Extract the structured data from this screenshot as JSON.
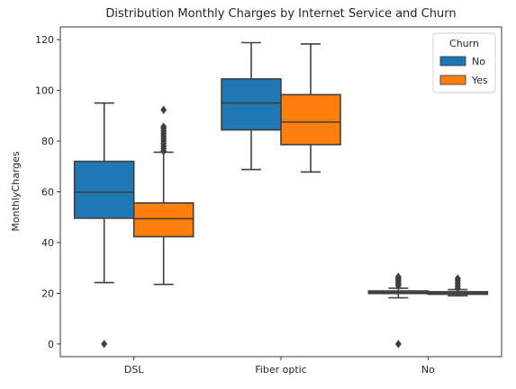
{
  "chart_data": {
    "type": "box",
    "title": "Distribution Monthly Charges by Internet Service and Churn",
    "xlabel": "",
    "ylabel": "MonthlyCharges",
    "ylim": [
      -5,
      125
    ],
    "yticks": [
      0,
      20,
      40,
      60,
      80,
      100,
      120
    ],
    "categories": [
      "DSL",
      "Fiber optic",
      "No"
    ],
    "legend": {
      "title": "Churn",
      "placement": "top-right"
    },
    "series": [
      {
        "name": "No",
        "color": "#1f77b4",
        "boxes": [
          {
            "whisker_low": 24.2,
            "q1": 49.6,
            "median": 59.9,
            "q3": 72.0,
            "whisker_high": 95.0,
            "outliers": [
              0
            ]
          },
          {
            "whisker_low": 68.8,
            "q1": 84.4,
            "median": 95.0,
            "q3": 104.5,
            "whisker_high": 118.8,
            "outliers": []
          },
          {
            "whisker_low": 18.2,
            "q1": 19.9,
            "median": 20.2,
            "q3": 20.9,
            "whisker_high": 22.0,
            "outliers": [
              0,
              23.0,
              23.6,
              24.2,
              24.8,
              25.4,
              26.0,
              26.5
            ]
          }
        ]
      },
      {
        "name": "Yes",
        "color": "#ff7f0e",
        "boxes": [
          {
            "whisker_low": 23.5,
            "q1": 42.3,
            "median": 49.4,
            "q3": 55.6,
            "whisker_high": 75.6,
            "outliers": [
              76.0,
              77.0,
              78.0,
              79.0,
              80.0,
              81.0,
              82.0,
              83.0,
              84.0,
              85.0,
              85.7,
              92.3
            ]
          },
          {
            "whisker_low": 67.8,
            "q1": 78.6,
            "median": 87.5,
            "q3": 98.3,
            "whisker_high": 118.3,
            "outliers": []
          },
          {
            "whisker_low": 19.0,
            "q1": 19.6,
            "median": 20.0,
            "q3": 20.6,
            "whisker_high": 21.4,
            "outliers": [
              22.0,
              23.0,
              24.0,
              25.0,
              25.8
            ]
          }
        ]
      }
    ]
  }
}
